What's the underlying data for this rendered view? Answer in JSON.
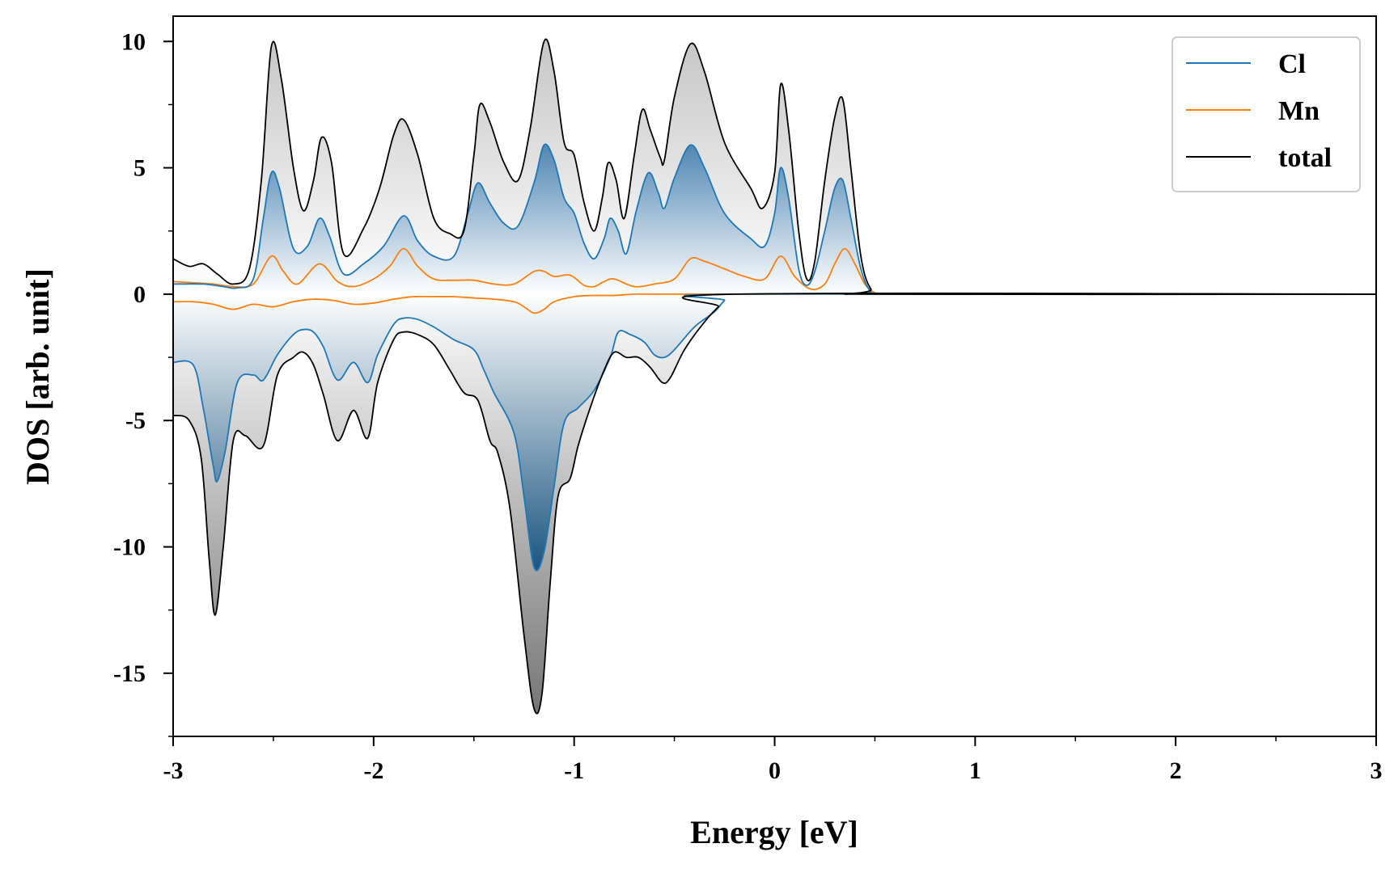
{
  "chart_data": {
    "type": "area",
    "title": "",
    "xlabel": "Energy [eV]",
    "ylabel": "DOS [arb. unit]",
    "xlim": [
      -3,
      3
    ],
    "ylim": [
      -17.5,
      11
    ],
    "xticks": [
      -3,
      -2,
      -1,
      0,
      1,
      2,
      3
    ],
    "xtick_labels": [
      "-3",
      "-2",
      "-1",
      "0",
      "1",
      "2",
      "3"
    ],
    "yticks": [
      -15,
      -10,
      -5,
      0,
      5,
      10
    ],
    "ytick_labels": [
      "-15",
      "-10",
      "-5",
      "0",
      "5",
      "10"
    ],
    "grid": false,
    "legend_position": "top-right",
    "colors": {
      "Cl": "#1f77b4",
      "Mn": "#ff7f0e",
      "total": "#000000"
    },
    "series": [
      {
        "name": "Cl",
        "spin_up": {
          "x": [
            -3.0,
            -2.85,
            -2.75,
            -2.68,
            -2.6,
            -2.55,
            -2.51,
            -2.47,
            -2.4,
            -2.33,
            -2.27,
            -2.22,
            -2.15,
            -2.05,
            -1.95,
            -1.85,
            -1.78,
            -1.7,
            -1.6,
            -1.53,
            -1.48,
            -1.42,
            -1.35,
            -1.28,
            -1.2,
            -1.15,
            -1.1,
            -1.05,
            -1.0,
            -0.95,
            -0.9,
            -0.85,
            -0.82,
            -0.78,
            -0.74,
            -0.69,
            -0.63,
            -0.58,
            -0.55,
            -0.5,
            -0.42,
            -0.35,
            -0.25,
            -0.12,
            -0.05,
            0.0,
            0.03,
            0.07,
            0.12,
            0.16,
            0.2,
            0.25,
            0.3,
            0.34,
            0.38,
            0.43,
            0.48,
            0.55,
            3.0
          ],
          "y": [
            0.4,
            0.4,
            0.3,
            0.25,
            0.6,
            3.0,
            4.8,
            4.2,
            1.8,
            1.9,
            3.0,
            2.3,
            0.8,
            1.2,
            1.9,
            3.1,
            2.1,
            1.5,
            1.5,
            3.2,
            4.4,
            3.6,
            2.8,
            2.7,
            4.4,
            5.9,
            5.3,
            3.8,
            3.2,
            2.0,
            1.4,
            2.2,
            3.0,
            2.5,
            1.6,
            3.3,
            4.8,
            4.0,
            3.4,
            4.6,
            5.9,
            5.0,
            3.2,
            2.2,
            1.9,
            3.2,
            5.0,
            3.8,
            1.0,
            0.35,
            0.9,
            2.5,
            4.2,
            4.5,
            3.0,
            1.0,
            0.1,
            0.0,
            0.0
          ]
        },
        "spin_down": {
          "x": [
            -3.0,
            -2.9,
            -2.85,
            -2.8,
            -2.78,
            -2.74,
            -2.68,
            -2.6,
            -2.55,
            -2.48,
            -2.4,
            -2.35,
            -2.3,
            -2.25,
            -2.18,
            -2.1,
            -2.03,
            -1.98,
            -1.9,
            -1.85,
            -1.78,
            -1.7,
            -1.6,
            -1.5,
            -1.45,
            -1.4,
            -1.3,
            -1.25,
            -1.2,
            -1.15,
            -1.1,
            -1.05,
            -0.98,
            -0.9,
            -0.82,
            -0.78,
            -0.72,
            -0.65,
            -0.6,
            -0.55,
            -0.5,
            -0.4,
            -0.3,
            -0.25,
            -0.2,
            3.0
          ],
          "y": [
            -2.7,
            -2.8,
            -4.5,
            -6.8,
            -7.4,
            -6.2,
            -3.5,
            -3.2,
            -3.4,
            -2.4,
            -1.6,
            -1.4,
            -1.5,
            -2.1,
            -3.4,
            -2.7,
            -3.5,
            -2.4,
            -1.2,
            -0.95,
            -1.0,
            -1.3,
            -1.8,
            -2.2,
            -3.0,
            -3.9,
            -5.5,
            -8.0,
            -10.8,
            -10.2,
            -7.6,
            -5.1,
            -4.5,
            -3.8,
            -2.5,
            -1.5,
            -1.6,
            -1.9,
            -2.4,
            -2.5,
            -2.2,
            -1.3,
            -0.7,
            -0.25,
            0.0,
            0.0
          ]
        }
      },
      {
        "name": "Mn",
        "spin_up": {
          "x": [
            -3.0,
            -2.9,
            -2.8,
            -2.7,
            -2.6,
            -2.51,
            -2.45,
            -2.38,
            -2.27,
            -2.18,
            -2.1,
            -2.0,
            -1.92,
            -1.85,
            -1.78,
            -1.7,
            -1.6,
            -1.5,
            -1.4,
            -1.3,
            -1.2,
            -1.15,
            -1.1,
            -1.02,
            -0.95,
            -0.9,
            -0.85,
            -0.8,
            -0.7,
            -0.6,
            -0.5,
            -0.42,
            -0.35,
            -0.25,
            -0.15,
            -0.05,
            0.03,
            0.1,
            0.18,
            0.25,
            0.3,
            0.35,
            0.4,
            0.45,
            0.5,
            0.55,
            3.0
          ],
          "y": [
            0.5,
            0.45,
            0.4,
            0.3,
            0.4,
            1.5,
            0.9,
            0.4,
            1.2,
            0.5,
            0.3,
            0.6,
            1.1,
            1.8,
            1.1,
            0.6,
            0.55,
            0.55,
            0.4,
            0.4,
            0.9,
            0.9,
            0.7,
            0.75,
            0.35,
            0.3,
            0.5,
            0.6,
            0.3,
            0.4,
            0.6,
            1.4,
            1.3,
            1.0,
            0.7,
            0.6,
            1.5,
            0.7,
            0.2,
            0.4,
            1.2,
            1.8,
            1.2,
            0.4,
            0.05,
            0.0,
            0.0
          ]
        },
        "spin_down": {
          "x": [
            -3.0,
            -2.9,
            -2.8,
            -2.7,
            -2.6,
            -2.5,
            -2.4,
            -2.3,
            -2.2,
            -2.1,
            -2.0,
            -1.9,
            -1.8,
            -1.7,
            -1.6,
            -1.5,
            -1.4,
            -1.3,
            -1.25,
            -1.2,
            -1.15,
            -1.1,
            -1.0,
            -0.9,
            -0.8,
            -0.7,
            -0.6,
            -0.5,
            -0.4,
            -0.3,
            -0.2,
            3.0
          ],
          "y": [
            -0.3,
            -0.3,
            -0.4,
            -0.6,
            -0.4,
            -0.5,
            -0.3,
            -0.2,
            -0.25,
            -0.4,
            -0.35,
            -0.2,
            -0.1,
            -0.1,
            -0.1,
            -0.15,
            -0.2,
            -0.3,
            -0.5,
            -0.75,
            -0.6,
            -0.3,
            -0.1,
            -0.05,
            -0.05,
            0.0,
            0.0,
            0.0,
            0.0,
            0.0,
            0.0,
            0.0
          ]
        }
      },
      {
        "name": "total",
        "spin_up": {
          "x": [
            -3.0,
            -2.92,
            -2.85,
            -2.78,
            -2.7,
            -2.62,
            -2.56,
            -2.51,
            -2.46,
            -2.4,
            -2.35,
            -2.3,
            -2.26,
            -2.21,
            -2.15,
            -2.05,
            -1.97,
            -1.9,
            -1.85,
            -1.78,
            -1.7,
            -1.62,
            -1.55,
            -1.5,
            -1.47,
            -1.42,
            -1.35,
            -1.28,
            -1.22,
            -1.15,
            -1.1,
            -1.05,
            -1.0,
            -0.95,
            -0.9,
            -0.86,
            -0.83,
            -0.79,
            -0.75,
            -0.7,
            -0.66,
            -0.62,
            -0.57,
            -0.55,
            -0.5,
            -0.42,
            -0.35,
            -0.25,
            -0.12,
            -0.06,
            0.0,
            0.03,
            0.07,
            0.12,
            0.16,
            0.2,
            0.25,
            0.3,
            0.34,
            0.38,
            0.43,
            0.48,
            0.55,
            3.0
          ],
          "y": [
            1.4,
            1.1,
            1.2,
            0.8,
            0.4,
            1.0,
            4.5,
            9.8,
            8.5,
            5.0,
            3.3,
            4.5,
            6.2,
            5.2,
            1.6,
            2.6,
            4.2,
            6.3,
            6.9,
            5.5,
            3.0,
            2.4,
            2.5,
            5.5,
            7.5,
            6.8,
            5.2,
            4.5,
            6.5,
            10.0,
            8.8,
            6.0,
            5.5,
            3.6,
            2.5,
            3.8,
            5.2,
            4.5,
            3.0,
            5.5,
            7.3,
            6.5,
            5.4,
            5.3,
            7.8,
            9.9,
            8.8,
            6.0,
            4.2,
            3.4,
            4.8,
            8.3,
            6.5,
            2.5,
            0.6,
            1.3,
            4.5,
            7.0,
            7.7,
            5.0,
            1.5,
            0.2,
            0.0,
            0.0
          ]
        },
        "spin_down": {
          "x": [
            -3.0,
            -2.92,
            -2.86,
            -2.82,
            -2.79,
            -2.75,
            -2.7,
            -2.64,
            -2.55,
            -2.48,
            -2.4,
            -2.35,
            -2.3,
            -2.25,
            -2.18,
            -2.1,
            -2.03,
            -1.98,
            -1.9,
            -1.85,
            -1.78,
            -1.7,
            -1.62,
            -1.55,
            -1.48,
            -1.42,
            -1.38,
            -1.32,
            -1.25,
            -1.2,
            -1.16,
            -1.12,
            -1.08,
            -1.02,
            -0.98,
            -0.92,
            -0.85,
            -0.8,
            -0.74,
            -0.68,
            -0.62,
            -0.56,
            -0.52,
            -0.45,
            -0.35,
            -0.28,
            -0.2,
            3.0
          ],
          "y": [
            -4.8,
            -5.0,
            -6.5,
            -10.5,
            -12.7,
            -10.0,
            -5.8,
            -5.6,
            -6.0,
            -3.2,
            -2.5,
            -2.3,
            -2.8,
            -4.0,
            -5.8,
            -4.6,
            -5.7,
            -3.5,
            -1.8,
            -1.5,
            -1.6,
            -2.0,
            -3.0,
            -3.9,
            -4.2,
            -5.8,
            -6.3,
            -8.5,
            -13.5,
            -16.4,
            -15.8,
            -11.5,
            -8.0,
            -7.3,
            -6.0,
            -4.5,
            -3.0,
            -2.3,
            -2.5,
            -2.5,
            -2.9,
            -3.5,
            -3.3,
            -2.2,
            -1.1,
            -0.5,
            0.0,
            0.0
          ]
        }
      }
    ]
  }
}
